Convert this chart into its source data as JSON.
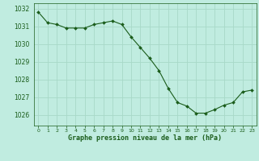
{
  "x": [
    0,
    1,
    2,
    3,
    4,
    5,
    6,
    7,
    8,
    9,
    10,
    11,
    12,
    13,
    14,
    15,
    16,
    17,
    18,
    19,
    20,
    21,
    22,
    23
  ],
  "y": [
    1031.8,
    1031.2,
    1031.1,
    1030.9,
    1030.9,
    1030.9,
    1031.1,
    1031.2,
    1031.3,
    1031.1,
    1030.4,
    1029.8,
    1029.2,
    1028.5,
    1027.5,
    1026.7,
    1026.5,
    1026.1,
    1026.1,
    1026.3,
    1026.55,
    1026.7,
    1027.3,
    1027.4
  ],
  "line_color": "#1a5c1a",
  "marker_color": "#1a5c1a",
  "bg_color": "#c0ece0",
  "grid_color": "#a8d8c8",
  "xlabel": "Graphe pression niveau de la mer (hPa)",
  "xlabel_color": "#1a5c1a",
  "tick_color": "#1a5c1a",
  "ylim": [
    1025.4,
    1032.3
  ],
  "xlim": [
    -0.5,
    23.5
  ],
  "yticks": [
    1026,
    1027,
    1028,
    1029,
    1030,
    1031,
    1032
  ],
  "xticks": [
    0,
    1,
    2,
    3,
    4,
    5,
    6,
    7,
    8,
    9,
    10,
    11,
    12,
    13,
    14,
    15,
    16,
    17,
    18,
    19,
    20,
    21,
    22,
    23
  ],
  "xtick_labels": [
    "0",
    "1",
    "2",
    "3",
    "4",
    "5",
    "6",
    "7",
    "8",
    "9",
    "10",
    "11",
    "12",
    "13",
    "14",
    "15",
    "16",
    "17",
    "18",
    "19",
    "20",
    "21",
    "22",
    "23"
  ]
}
